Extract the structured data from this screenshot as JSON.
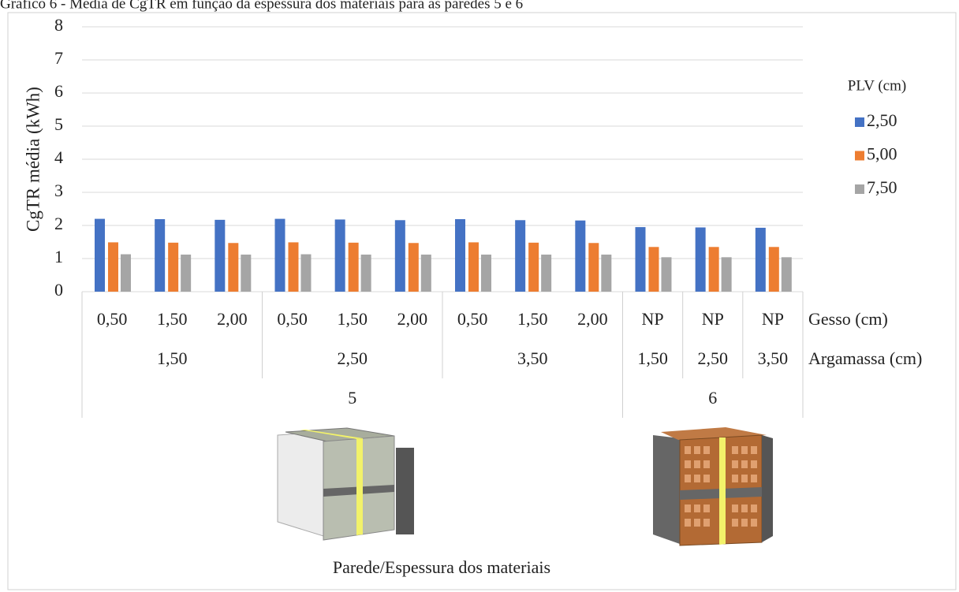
{
  "chart_data": {
    "type": "bar",
    "title": "Gráfico 6 - Média de CgTR em função da espessura dos materiais para as paredes 5 e 6",
    "y_label": "CgTR média (kWh)",
    "x_label": "Parede/Espessura dos materiais",
    "legend_title": "PLV (cm)",
    "level_names": [
      "Gesso (cm)",
      "Argamassa (cm)"
    ],
    "categories": [
      "0,50",
      "1,50",
      "2,00",
      "0,50",
      "1,50",
      "2,00",
      "0,50",
      "1,50",
      "2,00",
      "NP",
      "NP",
      "NP"
    ],
    "argamassa": [
      "1,50",
      null,
      null,
      "2,50",
      null,
      null,
      "3,50",
      null,
      null,
      "1,50",
      "2,50",
      "3,50"
    ],
    "parede": [
      "5",
      null,
      null,
      null,
      null,
      null,
      null,
      null,
      null,
      "6",
      null,
      null
    ],
    "series": [
      {
        "name": "2,50",
        "color": "#4472c4",
        "values": [
          2.2,
          2.19,
          2.17,
          2.2,
          2.18,
          2.16,
          2.19,
          2.16,
          2.15,
          1.95,
          1.94,
          1.93
        ]
      },
      {
        "name": "5,00",
        "color": "#ed7d31",
        "values": [
          1.49,
          1.48,
          1.47,
          1.49,
          1.48,
          1.47,
          1.49,
          1.48,
          1.47,
          1.35,
          1.35,
          1.35
        ]
      },
      {
        "name": "7,50",
        "color": "#a5a5a5",
        "values": [
          1.13,
          1.12,
          1.12,
          1.13,
          1.12,
          1.12,
          1.12,
          1.12,
          1.12,
          1.04,
          1.04,
          1.04
        ]
      }
    ],
    "ylim": [
      0,
      8
    ],
    "yticks": [
      0,
      1,
      2,
      3,
      4,
      5,
      6,
      7,
      8
    ],
    "grid": true
  }
}
